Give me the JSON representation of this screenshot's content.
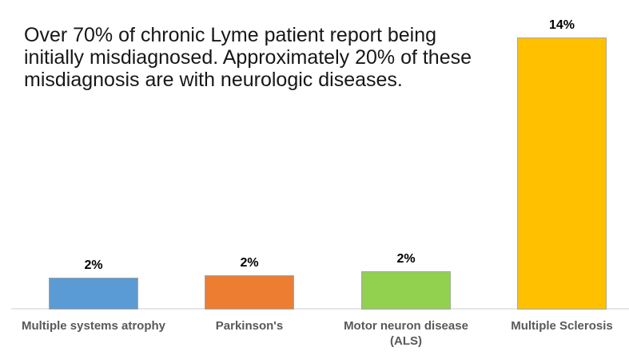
{
  "page": {
    "background": "#FFFFFF"
  },
  "chart_data": {
    "type": "bar",
    "title": "Over 70% of chronic Lyme patient report being initially misdiagnosed. Approximately 20% of these misdiagnosis are with neurologic diseases.",
    "title_lines": [
      "Over 70% of chronic Lyme patient report being",
      "initially misdiagnosed. Approximately 20% of these",
      "misdiagnosis are with neurologic diseases."
    ],
    "categories": [
      "Multiple systems atrophy",
      "Parkinson's",
      "Motor neuron disease (ALS)",
      "Multiple Sclerosis"
    ],
    "category_lines": [
      [
        "Multiple systems atrophy",
        ""
      ],
      [
        "Parkinson's",
        ""
      ],
      [
        "Motor neuron disease",
        "(ALS)"
      ],
      [
        "Multiple Sclerosis",
        ""
      ]
    ],
    "values": [
      2,
      2,
      2,
      14
    ],
    "data_labels": [
      "2%",
      "2%",
      "2%",
      "14%"
    ],
    "plotted_values_estimate": [
      1.64,
      1.77,
      1.97,
      14
    ],
    "series_colors": [
      "#5B9BD5",
      "#ED7D31",
      "#92D050",
      "#FFC000"
    ],
    "bar_border_color": "#A6A6A6",
    "axis_line_color": "#E6E6E6",
    "category_label_color": "#595959",
    "value_label_color": "#000000",
    "title_color": "#171717",
    "xlabel": "",
    "ylabel": "",
    "ylim": [
      0,
      15
    ],
    "grid": false,
    "legend": false
  }
}
